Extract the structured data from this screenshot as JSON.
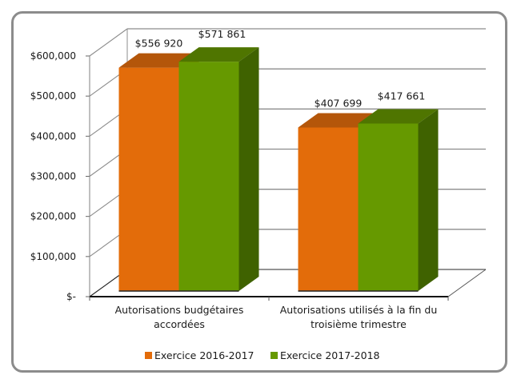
{
  "chart_data": {
    "type": "bar",
    "style": "3d-clustered-column",
    "title": "",
    "xlabel": "",
    "ylabel": "",
    "categories": [
      [
        "Autorisations budgétaires",
        "accordées"
      ],
      [
        "Autorisations utilisés à la fin du",
        "troisième trimestre"
      ]
    ],
    "series": [
      {
        "name": "Exercice 2016-2017",
        "values": [
          556920,
          407699
        ],
        "labels": [
          "$556 920",
          "$407 699"
        ],
        "color": "#E36C0A",
        "top_color": "#B4560A",
        "side_color": "#A04C08"
      },
      {
        "name": "Exercice 2017-2018",
        "values": [
          571861,
          417661
        ],
        "labels": [
          "$571 861",
          "$417 661"
        ],
        "color": "#669900",
        "top_color": "#4F7500",
        "side_color": "#3F6200"
      }
    ],
    "ylim": [
      0,
      600000
    ],
    "y_ticks": [
      0,
      100000,
      200000,
      300000,
      400000,
      500000,
      600000
    ],
    "y_tick_labels": [
      "$-",
      "$100,000",
      "$200,000",
      "$300,000",
      "$400,000",
      "$500,000",
      "$600,000"
    ],
    "grid": true,
    "legend": "bottom"
  }
}
